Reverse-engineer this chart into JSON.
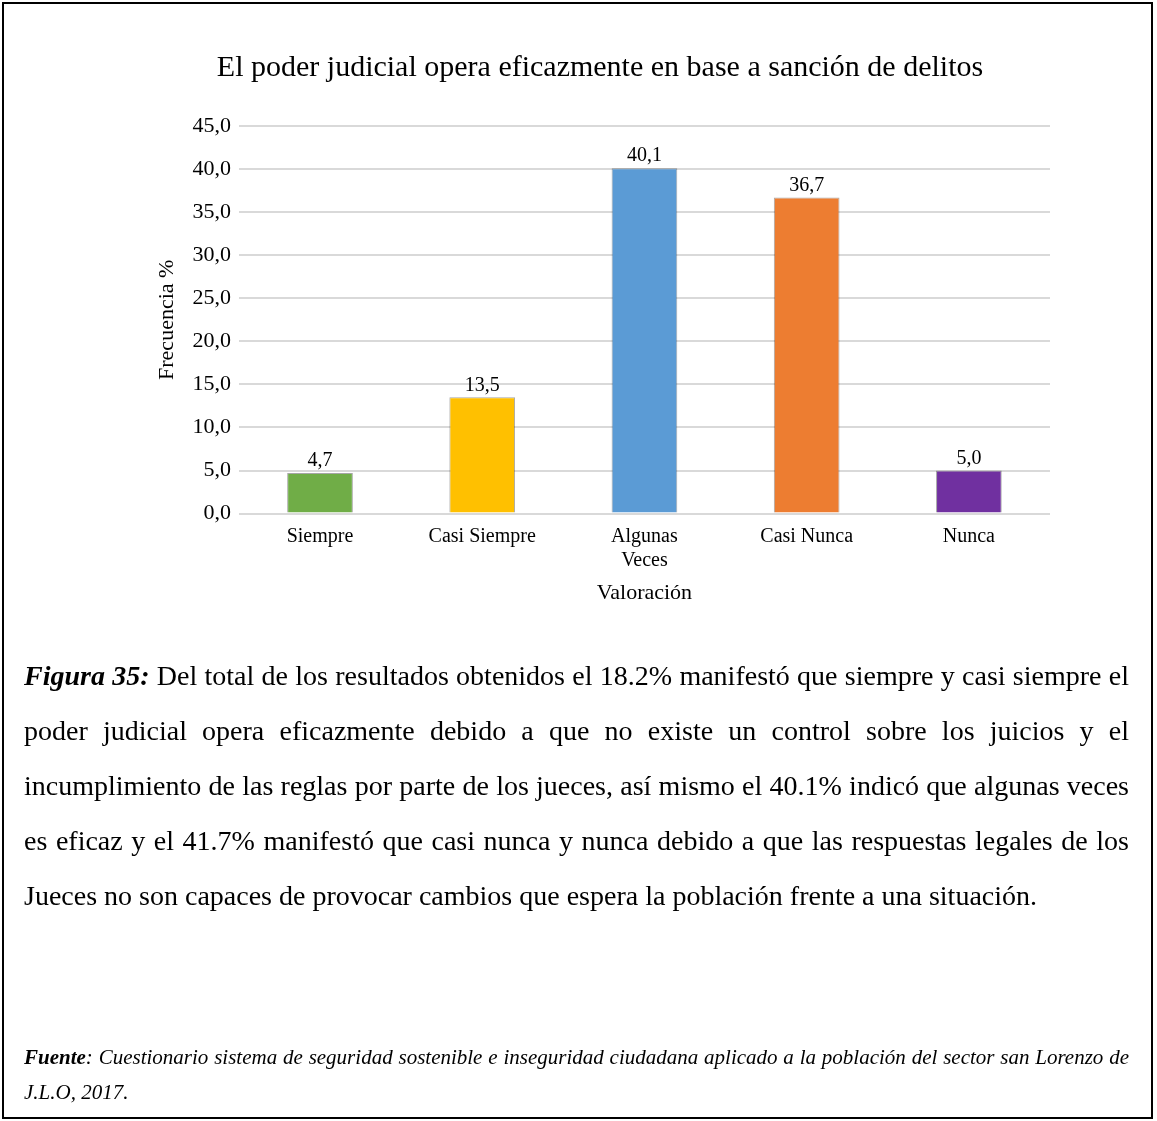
{
  "chart_data": {
    "type": "bar",
    "title": "El poder judicial opera eficazmente en base a sanción de delitos",
    "xlabel": "Valoración",
    "ylabel": "Frecuencia %",
    "categories": [
      "Siempre",
      "Casi Siempre",
      "Algunas Veces",
      "Casi Nunca",
      "Nunca"
    ],
    "values": [
      4.7,
      13.5,
      40.1,
      36.7,
      5.0
    ],
    "colors": [
      "#70ad47",
      "#ffc000",
      "#5b9bd5",
      "#ed7d31",
      "#7030a0"
    ],
    "value_labels": [
      "4,7",
      "13,5",
      "40,1",
      "36,7",
      "5,0"
    ],
    "ylim": [
      0,
      45
    ],
    "yticks": [
      {
        "value": 0,
        "label": "0,0"
      },
      {
        "value": 5,
        "label": "5,0"
      },
      {
        "value": 10,
        "label": "10,0"
      },
      {
        "value": 15,
        "label": "15,0"
      },
      {
        "value": 20,
        "label": "20,0"
      },
      {
        "value": 25,
        "label": "25,0"
      },
      {
        "value": 30,
        "label": "30,0"
      },
      {
        "value": 35,
        "label": "35,0"
      },
      {
        "value": 40,
        "label": "40,0"
      },
      {
        "value": 45,
        "label": "45,0"
      }
    ],
    "grid": "y",
    "legend": false,
    "annotations": [
      "Figura 35:",
      "Del total de los resultados obtenidos el 18.2% manifestó que siempre y casi siempre el poder judicial opera eficazmente debido a que no existe un control sobre los juicios y el incumplimiento de las reglas por parte de los jueces, así mismo el 40.1% indicó que algunas veces es eficaz y el 41.7% manifestó que casi nunca y nunca debido a que las respuestas legales de los Jueces no son capaces de provocar cambios que espera la población frente a una situación.",
      "Fuente",
      ": Cuestionario sistema de seguridad sostenible e inseguridad ciudadana aplicado a la población del sector san Lorenzo de J.L.O, 2017."
    ]
  }
}
